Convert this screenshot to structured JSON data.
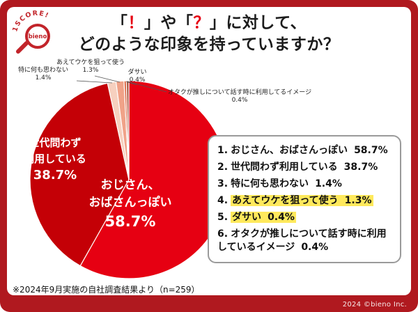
{
  "frame": {
    "bg_color": "#b0191f",
    "copyright": "2024 ©bieno Inc."
  },
  "logo": {
    "arc_text": "1SCORE!",
    "brand": "bieno",
    "color": "#c2242a"
  },
  "title": {
    "p1": "「",
    "p2": "！",
    "p3": "」や「",
    "p4": "？",
    "p5": "」に対して、",
    "line2": "どのような印象を持っていますか？",
    "accent": "#e60012"
  },
  "chart_data": {
    "type": "pie",
    "title": "「！」や「？」に対して、どのような印象を持っていますか？",
    "categories": [
      "おじさん、おばさんっぽい",
      "世代問わず利用している",
      "特に何も思わない",
      "あえてウケを狙って使う",
      "ダサい",
      "オタクが推しについて話す時に利用してるイメージ"
    ],
    "values": [
      58.7,
      38.7,
      1.4,
      1.3,
      0.4,
      0.4
    ],
    "colors": [
      "#e60012",
      "#c40006",
      "#f6d0bf",
      "#f0a288",
      "#e0714f",
      "#a34a31"
    ],
    "start_angle": 90,
    "direction": "clockwise",
    "legend_position": "right",
    "labels_inside": [
      {
        "lines": [
          "おじさん、",
          "おばさんっぽい",
          "58.7%"
        ]
      },
      {
        "lines": [
          "世代問わず",
          "利用している",
          "38.7%"
        ]
      }
    ],
    "callouts": [
      {
        "lines": [
          "特に何も思わない",
          "1.4%"
        ]
      },
      {
        "lines": [
          "あえてウケを狙って使う",
          "1.3%"
        ]
      },
      {
        "lines": [
          "ダサい",
          "0.4%"
        ]
      },
      {
        "lines": [
          "オタクが推しについて話す時に利用してるイメージ",
          "0.4%"
        ]
      }
    ]
  },
  "legend": {
    "highlight_color": "#ffe95c",
    "items": [
      {
        "num": "1.",
        "label": "おじさん、おばさんっぽい",
        "value": "58.7%",
        "highlight": false
      },
      {
        "num": "2.",
        "label": "世代問わず利用している",
        "value": "38.7%",
        "highlight": false
      },
      {
        "num": "3.",
        "label": "特に何も思わない",
        "value": "1.4%",
        "highlight": false
      },
      {
        "num": "4.",
        "label": "あえてウケを狙って使う",
        "value": "1.3%",
        "highlight": true
      },
      {
        "num": "5.",
        "label": "ダサい",
        "value": "0.4%",
        "highlight": true
      },
      {
        "num": "6.",
        "label": "オタクが推しについて話す時に利用しているイメージ",
        "value": "0.4%",
        "highlight": false
      }
    ]
  },
  "footnote": "※2024年9月実施の自社調査結果より（n=259）"
}
